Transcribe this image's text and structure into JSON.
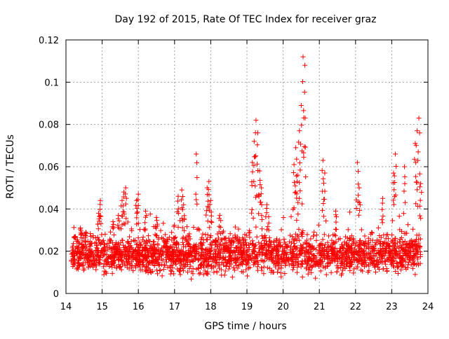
{
  "chart_data": {
    "type": "scatter",
    "title": "Day 192 of 2015, Rate Of TEC Index for receiver graz",
    "xlabel": "GPS time / hours",
    "ylabel": "ROTI / TECUs",
    "xlim": [
      14,
      24
    ],
    "ylim": [
      0,
      0.12
    ],
    "x_ticks": [
      14,
      15,
      16,
      17,
      18,
      19,
      20,
      21,
      22,
      23,
      24
    ],
    "y_ticks": [
      0,
      0.02,
      0.04,
      0.06,
      0.08,
      0.1,
      0.12
    ],
    "x_tick_labels": [
      "14",
      "15",
      "16",
      "17",
      "18",
      "19",
      "20",
      "21",
      "22",
      "23",
      "24"
    ],
    "y_tick_labels": [
      "0",
      "0.02",
      "0.04",
      "0.06",
      "0.08",
      "0.1",
      "0.12"
    ],
    "grid": true,
    "marker": "+",
    "color": "#ff0000",
    "data_range_x": [
      14.15,
      23.8
    ],
    "baseline": {
      "y_min": 0.006,
      "y_max": 0.026,
      "typical": 0.016
    },
    "series": [
      {
        "name": "ROTI",
        "x": [
          14.25,
          14.4,
          14.55,
          14.9,
          14.95,
          15.3,
          15.45,
          15.55,
          15.6,
          15.65,
          15.95,
          16.0,
          16.2,
          16.5,
          17.1,
          17.2,
          17.25,
          17.6,
          17.9,
          17.95,
          18.0,
          18.25,
          19.15,
          19.2,
          19.25,
          19.3,
          19.35,
          19.4,
          19.55,
          20.3,
          20.35,
          20.4,
          20.45,
          20.5,
          20.55,
          20.6,
          21.1,
          21.15,
          21.45,
          22.05,
          22.1,
          22.75,
          23.05,
          23.1,
          23.35,
          23.65,
          23.7,
          23.75,
          23.8
        ],
        "y": [
          0.027,
          0.031,
          0.029,
          0.038,
          0.044,
          0.034,
          0.037,
          0.044,
          0.048,
          0.05,
          0.044,
          0.047,
          0.039,
          0.036,
          0.046,
          0.049,
          0.042,
          0.066,
          0.05,
          0.053,
          0.044,
          0.037,
          0.062,
          0.072,
          0.082,
          0.076,
          0.058,
          0.05,
          0.042,
          0.061,
          0.069,
          0.056,
          0.077,
          0.089,
          0.112,
          0.108,
          0.063,
          0.057,
          0.039,
          0.062,
          0.05,
          0.045,
          0.057,
          0.066,
          0.06,
          0.071,
          0.077,
          0.083,
          0.052
        ]
      }
    ]
  }
}
